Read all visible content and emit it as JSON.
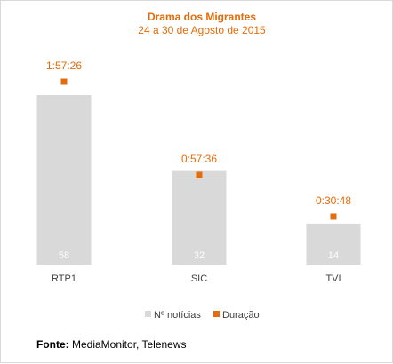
{
  "colors": {
    "accent": "#e46c0a",
    "bar": "#d9d9d9",
    "bar_label": "#ffffff",
    "tick_text": "#404040"
  },
  "source": {
    "label": "Fonte:",
    "text": " MediaMonitor, Telenews"
  },
  "chart_data": {
    "type": "bar",
    "title": "Drama dos Migrantes",
    "subtitle": "24 a 30 de Agosto de 2015",
    "categories": [
      "RTP1",
      "SIC",
      "TVI"
    ],
    "series": [
      {
        "name": "Nº notícias",
        "type": "bar",
        "values": [
          58,
          32,
          14
        ],
        "labels": [
          "58",
          "32",
          "14"
        ]
      },
      {
        "name": "Duração",
        "type": "point",
        "values_seconds": [
          7046,
          3456,
          1848
        ],
        "labels": [
          "1:57:26",
          "0:57:36",
          "0:30:48"
        ]
      }
    ],
    "legend_position": "bottom",
    "grid": false
  }
}
